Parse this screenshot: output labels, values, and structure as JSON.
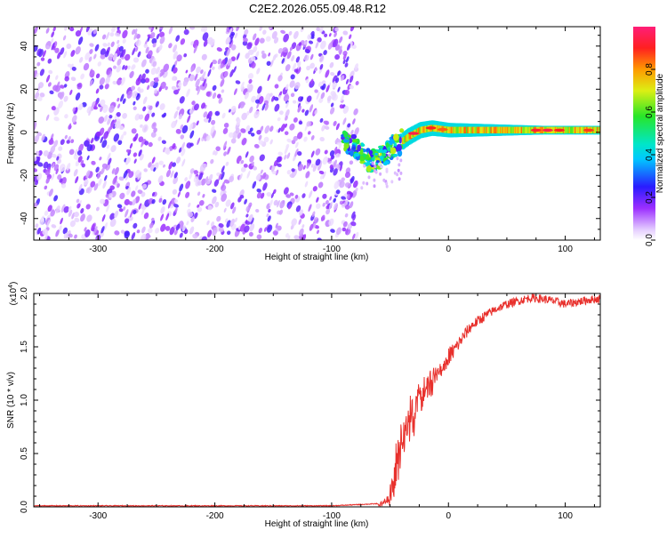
{
  "title": "C2E2.2026.055.09.48.R12",
  "chart_data": [
    {
      "type": "heatmap",
      "xlabel": "Height of straight line (km)",
      "ylabel": "Frequency (Hz)",
      "xlim": [
        -355,
        130
      ],
      "ylim": [
        -50,
        49
      ],
      "x_ticks": [
        -300,
        -200,
        -100,
        0,
        100
      ],
      "x_tick_labels": [
        "-300",
        "-200",
        "-100",
        "0",
        "100"
      ],
      "y_ticks": [
        -40,
        -20,
        0,
        20,
        40
      ],
      "y_tick_labels": [
        "-40",
        "-20",
        "0",
        "20",
        "40"
      ],
      "colorbar": {
        "label": "Normalized spectral amplitude",
        "range": [
          0,
          1
        ],
        "ticks": [
          0.0,
          0.2,
          0.4,
          0.6,
          0.8
        ],
        "tick_labels": [
          "0.0",
          "0.2",
          "0.4",
          "0.6",
          "0.8"
        ],
        "colormap": "rainbow (white-violet-blue-cyan-green-yellow-red-magenta)"
      },
      "regions": [
        {
          "description": "broadband noise",
          "x_range": [
            -355,
            -78
          ],
          "freq_range": [
            -50,
            49
          ],
          "amplitude_range": [
            0.0,
            0.2
          ]
        },
        {
          "description": "signal onset",
          "x_range": [
            -90,
            -40
          ],
          "freq_center": -10,
          "amplitude_range": [
            0.2,
            0.6
          ]
        },
        {
          "description": "carrier line",
          "x_range": [
            -40,
            130
          ],
          "freq_center": 1,
          "amplitude_range": [
            0.4,
            0.95
          ]
        }
      ],
      "peak_track": [
        {
          "x": -85,
          "freq": -5
        },
        {
          "x": -75,
          "freq": -10
        },
        {
          "x": -65,
          "freq": -14
        },
        {
          "x": -55,
          "freq": -10
        },
        {
          "x": -45,
          "freq": -6
        },
        {
          "x": -35,
          "freq": -2
        },
        {
          "x": -25,
          "freq": 1
        },
        {
          "x": -15,
          "freq": 2
        },
        {
          "x": 0,
          "freq": 1
        },
        {
          "x": 50,
          "freq": 1
        },
        {
          "x": 100,
          "freq": 1
        },
        {
          "x": 130,
          "freq": 1
        }
      ],
      "grid": false
    },
    {
      "type": "line",
      "xlabel": "Height of straight line (km)",
      "ylabel": "SNR (10 * v/v)",
      "y_multiplier_label": "(x10",
      "y_multiplier_exponent": "4",
      "xlim": [
        -355,
        130
      ],
      "ylim": [
        0,
        2.0
      ],
      "x_ticks": [
        -300,
        -200,
        -100,
        0,
        100
      ],
      "x_tick_labels": [
        "-300",
        "-200",
        "-100",
        "0",
        "100"
      ],
      "y_ticks": [
        0.0,
        0.5,
        1.0,
        1.5,
        2.0
      ],
      "y_tick_labels": [
        "0.0",
        "0.5",
        "1.0",
        "1.5",
        "2.0"
      ],
      "series": [
        {
          "color": "#e8302c",
          "x": [
            -355,
            -300,
            -200,
            -100,
            -60,
            -52,
            -48,
            -44,
            -40,
            -36,
            -32,
            -28,
            -24,
            -20,
            -16,
            -12,
            -8,
            -4,
            0,
            5,
            10,
            15,
            20,
            25,
            30,
            40,
            50,
            60,
            70,
            80,
            90,
            100,
            110,
            120,
            130
          ],
          "y": [
            0.01,
            0.01,
            0.01,
            0.01,
            0.03,
            0.1,
            0.3,
            0.6,
            0.85,
            1.0,
            1.05,
            1.1,
            1.15,
            1.2,
            1.25,
            1.3,
            1.33,
            1.37,
            1.4,
            1.47,
            1.55,
            1.63,
            1.7,
            1.74,
            1.78,
            1.85,
            1.9,
            1.93,
            1.96,
            1.95,
            1.93,
            1.9,
            1.92,
            1.94,
            1.95
          ],
          "noise_amplitude": [
            0,
            0,
            0,
            0,
            0.02,
            0.1,
            0.3,
            0.5,
            0.55,
            0.5,
            0.45,
            0.4,
            0.35,
            0.3,
            0.25,
            0.2,
            0.15,
            0.12,
            0.1,
            0.08,
            0.06,
            0.06,
            0.05,
            0.05,
            0.05,
            0.04,
            0.04,
            0.04,
            0.04,
            0.04,
            0.04,
            0.04,
            0.04,
            0.04,
            0.04
          ]
        }
      ],
      "grid": false
    }
  ]
}
